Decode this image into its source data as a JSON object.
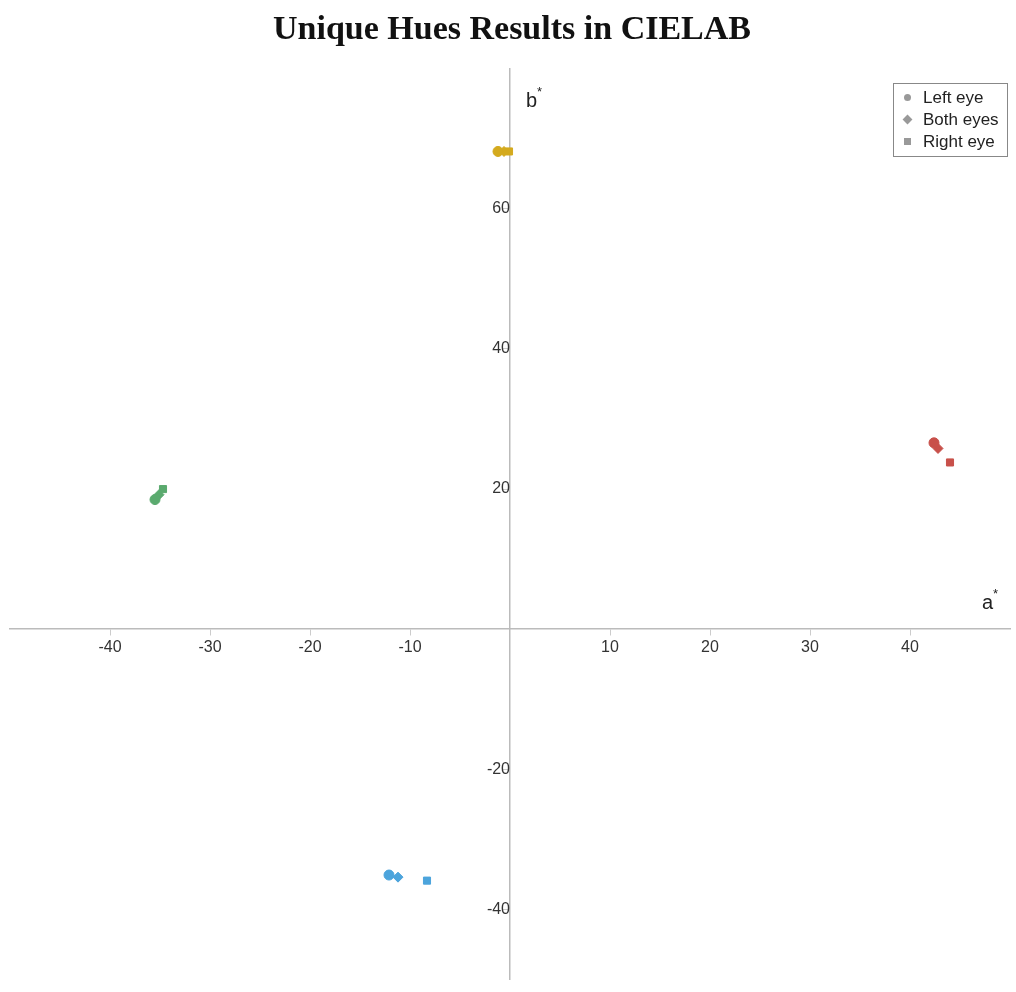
{
  "chart_data": {
    "type": "scatter",
    "title": "Unique Hues Results in CIELAB",
    "xlabel": "a$^{*}$",
    "ylabel": "b$^{*}$",
    "xlim": [
      -50,
      50
    ],
    "xticks": [
      -40,
      -30,
      -20,
      -10,
      10,
      20,
      30,
      40
    ],
    "ylim": [
      -50,
      80
    ],
    "yticks": [
      -40,
      -20,
      20,
      40,
      60
    ],
    "grid": false,
    "legend": "top right",
    "series": [
      {
        "name": "Left eye",
        "color": "#999999",
        "marker": "circle",
        "x": [
          -1.2,
          42.4,
          -35.5,
          -12.1
        ],
        "values": [
          68.2,
          26.6,
          18.5,
          -35.1
        ],
        "colors": [
          "#d4aa1e",
          "#c8504a",
          "#5aaa6e",
          "#4ca4dc"
        ]
      },
      {
        "name": "Both eyes",
        "color": "#999999",
        "marker": "diamond",
        "x": [
          -0.6,
          42.8,
          -35.1,
          -11.2
        ],
        "values": [
          68.2,
          25.8,
          19.2,
          -35.4
        ],
        "colors": [
          "#d4aa1e",
          "#c8504a",
          "#5aaa6e",
          "#4ca4dc"
        ]
      },
      {
        "name": "Right eye",
        "color": "#999999",
        "marker": "square",
        "x": [
          -0.1,
          44.0,
          -34.7,
          -8.3
        ],
        "values": [
          68.2,
          23.8,
          20.0,
          -35.9
        ],
        "colors": [
          "#d4aa1e",
          "#c8504a",
          "#5aaa6e",
          "#4ca4dc"
        ]
      }
    ]
  }
}
